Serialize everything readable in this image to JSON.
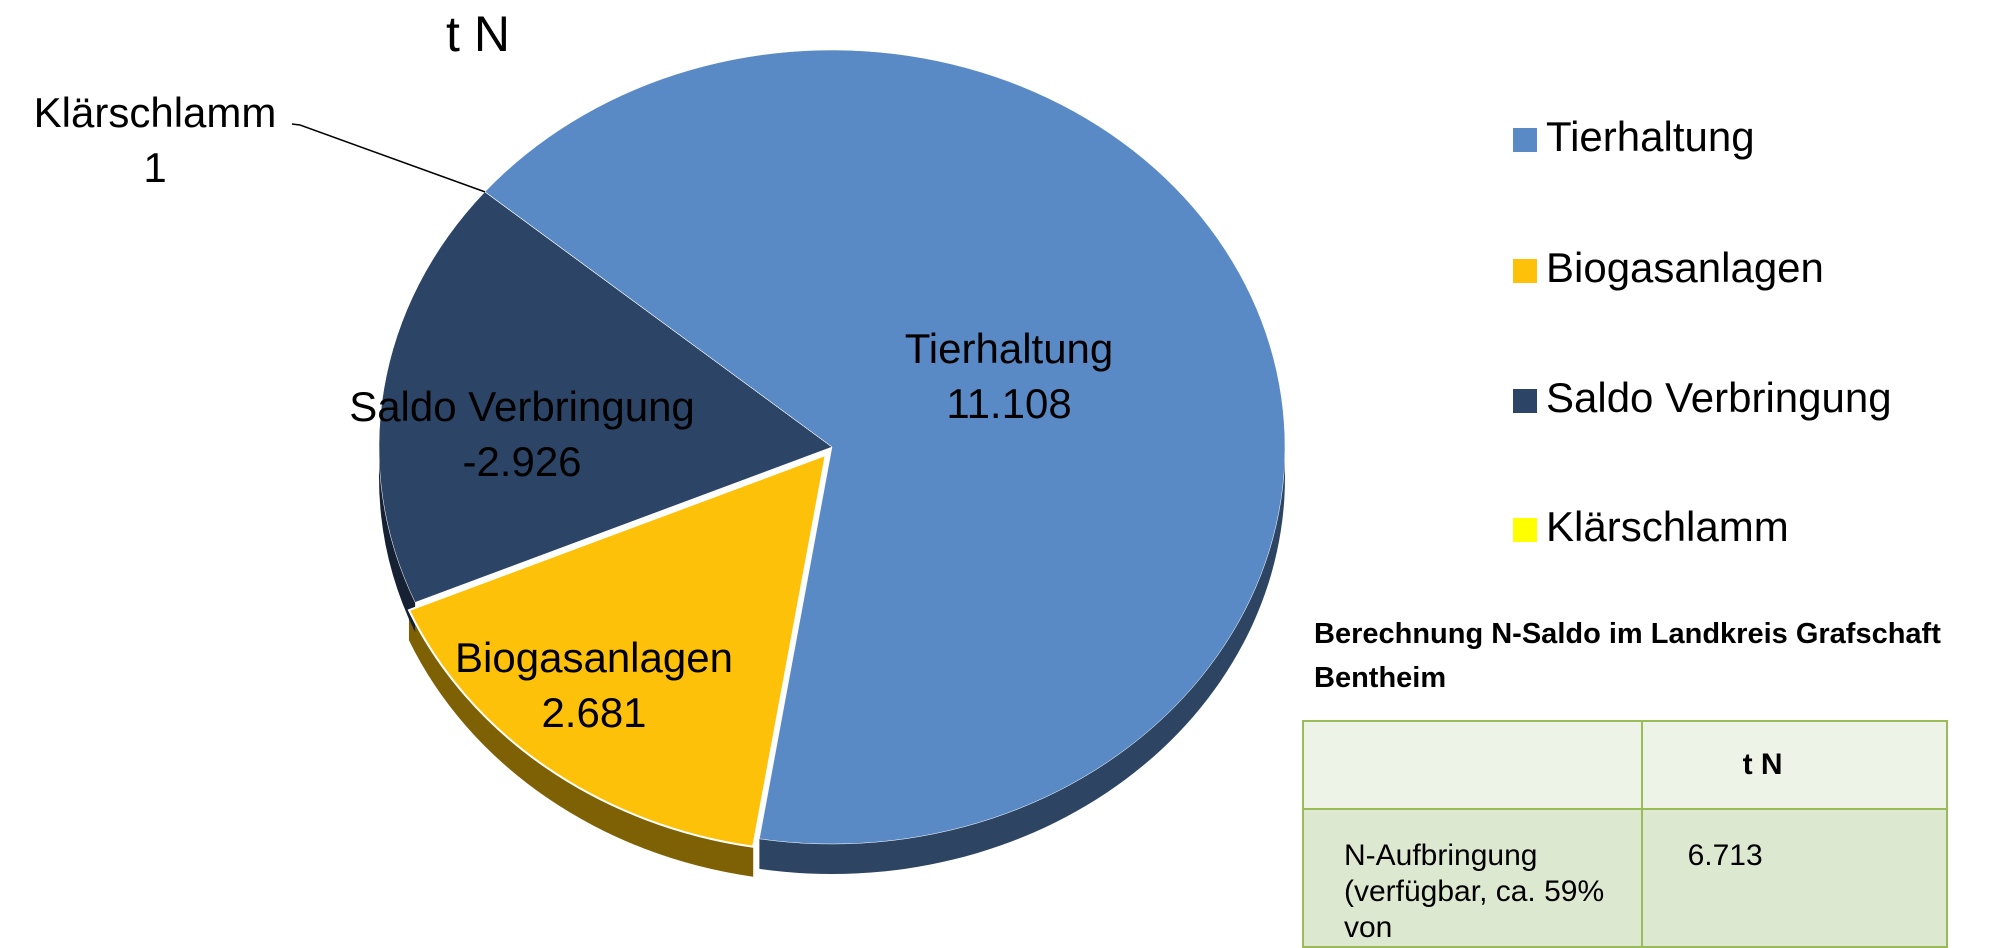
{
  "chart_data": {
    "type": "pie",
    "title": "t N",
    "categories": [
      "Tierhaltung",
      "Biogasanlagen",
      "Saldo Verbringung",
      "Klärschlamm"
    ],
    "values": [
      11108,
      2681,
      -2926,
      1
    ],
    "value_labels": [
      "11.108",
      "2.681",
      "-2.926",
      "1"
    ],
    "colors": [
      "#5a8ac6",
      "#fdc10a",
      "#2c4466",
      "#ffff00"
    ],
    "legend": "right"
  },
  "table": {
    "caption": "Berechnung N-Saldo im Landkreis Grafschaft Bentheim",
    "header": [
      "",
      "t N"
    ],
    "rows": [
      [
        "N-Aufbringung (verfügbar, ca. 59% von",
        "6.713"
      ]
    ]
  }
}
